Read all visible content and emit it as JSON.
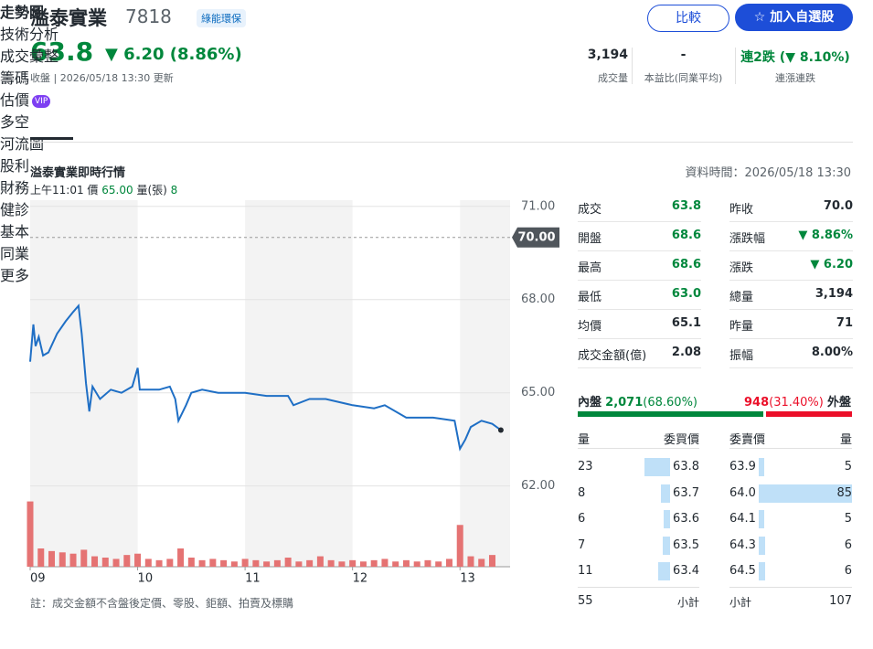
{
  "header": {
    "name": "溢泰實業",
    "code": "7818",
    "tag": "綠能環保",
    "compare_button": "比較",
    "watchlist_button": "加入自選股",
    "price": "63.8",
    "change": "▼ 6.20 (8.86%)",
    "status": "收盤 | 2026/05/18 13:30 更新",
    "stats": [
      {
        "value": "3,194",
        "label": "成交量"
      },
      {
        "value": "-",
        "label": "本益比(同業平均)"
      },
      {
        "value": "連2跌 (▼ 8.10%)",
        "label": "連漲連跌"
      }
    ]
  },
  "tabs": [
    {
      "label": "走勢圖",
      "active": true
    },
    {
      "label": "技術分析"
    },
    {
      "label": "成交彙整"
    },
    {
      "label": "籌碼",
      "dot": true
    },
    {
      "label": "估價",
      "badge": "VIP",
      "dot": true
    },
    {
      "label": "多空"
    },
    {
      "label": "河流圖"
    },
    {
      "label": "股利"
    },
    {
      "label": "財務",
      "dot": true
    },
    {
      "label": "健診",
      "dot": true
    },
    {
      "label": "基本"
    },
    {
      "label": "同業比較",
      "dot": true
    },
    {
      "label": "更多...",
      "dot": true
    }
  ],
  "panel_title": "溢泰實業即時行情",
  "data_time": "資料時間：2026/05/18 13:30",
  "hover": {
    "time": "上午11:01",
    "price_label": "價",
    "price": "65.00",
    "volume_label": "量(張)",
    "volume": "8"
  },
  "chart_data": {
    "type": "line",
    "color": "#1f6fc5",
    "x": [
      9.0,
      9.03,
      9.05,
      9.08,
      9.12,
      9.17,
      9.25,
      9.33,
      9.4,
      9.45,
      9.48,
      9.52,
      9.55,
      9.58,
      9.65,
      9.75,
      9.85,
      9.95,
      10.0,
      10.02,
      10.2,
      10.3,
      10.35,
      10.38,
      10.45,
      10.5,
      10.6,
      10.75,
      11.0,
      11.2,
      11.4,
      11.45,
      11.6,
      11.75,
      12.0,
      12.2,
      12.3,
      12.5,
      12.75,
      12.95,
      13.0,
      13.05,
      13.1,
      13.2,
      13.3,
      13.38
    ],
    "values": [
      66.0,
      67.2,
      66.5,
      66.8,
      66.2,
      66.3,
      66.9,
      67.3,
      67.6,
      67.8,
      66.9,
      65.3,
      64.4,
      65.2,
      64.8,
      65.1,
      65.0,
      65.2,
      65.8,
      65.1,
      65.1,
      65.2,
      64.8,
      64.1,
      64.6,
      65.0,
      65.1,
      65.0,
      65.0,
      64.9,
      64.9,
      64.6,
      64.8,
      64.8,
      64.6,
      64.5,
      64.6,
      64.2,
      64.2,
      64.1,
      63.2,
      63.5,
      63.9,
      64.1,
      64.0,
      63.8
    ],
    "xlim": [
      9,
      13.5
    ],
    "xticks": [
      {
        "value": 9,
        "label": "09"
      },
      {
        "value": 10,
        "label": "10"
      },
      {
        "value": 11,
        "label": "11"
      },
      {
        "value": 12,
        "label": "12"
      },
      {
        "value": 13,
        "label": "13"
      }
    ],
    "ylim": [
      59.4,
      71.2
    ],
    "yticks": [
      {
        "value": 71,
        "label": "71.00"
      },
      {
        "value": 68,
        "label": "68.00"
      },
      {
        "value": 65,
        "label": "65.00"
      },
      {
        "value": 62,
        "label": "62.00"
      }
    ],
    "reference": {
      "value": 70,
      "label": "70.00"
    },
    "volume": {
      "type": "bar",
      "color": "#e57373",
      "y2lim": [
        0,
        280
      ],
      "x": [
        9.0,
        9.1,
        9.2,
        9.3,
        9.4,
        9.5,
        9.6,
        9.7,
        9.8,
        9.9,
        10.0,
        10.1,
        10.2,
        10.3,
        10.4,
        10.5,
        10.6,
        10.7,
        10.8,
        10.9,
        11.0,
        11.1,
        11.2,
        11.3,
        11.4,
        11.5,
        11.6,
        11.7,
        11.8,
        11.9,
        12.0,
        12.1,
        12.2,
        12.3,
        12.4,
        12.5,
        12.6,
        12.7,
        12.8,
        12.9,
        13.0,
        13.1,
        13.2,
        13.3
      ],
      "values": [
        250,
        70,
        60,
        55,
        50,
        65,
        40,
        35,
        30,
        45,
        50,
        30,
        25,
        30,
        70,
        35,
        25,
        30,
        25,
        20,
        30,
        25,
        20,
        25,
        35,
        20,
        25,
        40,
        25,
        20,
        25,
        20,
        25,
        30,
        20,
        25,
        20,
        25,
        20,
        30,
        160,
        40,
        30,
        45
      ]
    }
  },
  "quote": [
    [
      {
        "label": "成交",
        "value": "63.8",
        "down": true
      },
      {
        "label": "昨收",
        "value": "70.0"
      }
    ],
    [
      {
        "label": "開盤",
        "value": "68.6",
        "down": true
      },
      {
        "label": "漲跌幅",
        "value": "▼ 8.86%",
        "down": true
      }
    ],
    [
      {
        "label": "最高",
        "value": "68.6",
        "down": true
      },
      {
        "label": "漲跌",
        "value": "▼ 6.20",
        "down": true
      }
    ],
    [
      {
        "label": "最低",
        "value": "63.0",
        "down": true
      },
      {
        "label": "總量",
        "value": "3,194"
      }
    ],
    [
      {
        "label": "均價",
        "value": "65.1"
      },
      {
        "label": "昨量",
        "value": "71"
      }
    ],
    [
      {
        "label": "成交金額(億)",
        "value": "2.08"
      },
      {
        "label": "振幅",
        "value": "8.00%"
      }
    ]
  ],
  "inner_outer": {
    "inner_label": "內盤",
    "inner": "2,071",
    "inner_pct": "(68.60%)",
    "outer": "948",
    "outer_pct": "(31.40%)",
    "outer_label": "外盤"
  },
  "order_book": {
    "headers": [
      "量",
      "委買價",
      "委賣價",
      "量"
    ],
    "bids": [
      {
        "volume": 23,
        "price": "63.8"
      },
      {
        "volume": 8,
        "price": "63.7"
      },
      {
        "volume": 6,
        "price": "63.6"
      },
      {
        "volume": 7,
        "price": "63.5"
      },
      {
        "volume": 11,
        "price": "63.4"
      }
    ],
    "asks": [
      {
        "price": "63.9",
        "volume": 5
      },
      {
        "price": "64.0",
        "volume": 85
      },
      {
        "price": "64.1",
        "volume": 5
      },
      {
        "price": "64.3",
        "volume": 6
      },
      {
        "price": "64.5",
        "volume": 6
      }
    ],
    "totals": {
      "bid_volume": "55",
      "bid_label": "小計",
      "ask_label": "小計",
      "ask_volume": "107"
    }
  },
  "note": "註：成交金額不含盤後定價、零股、鉅額、拍賣及標購"
}
